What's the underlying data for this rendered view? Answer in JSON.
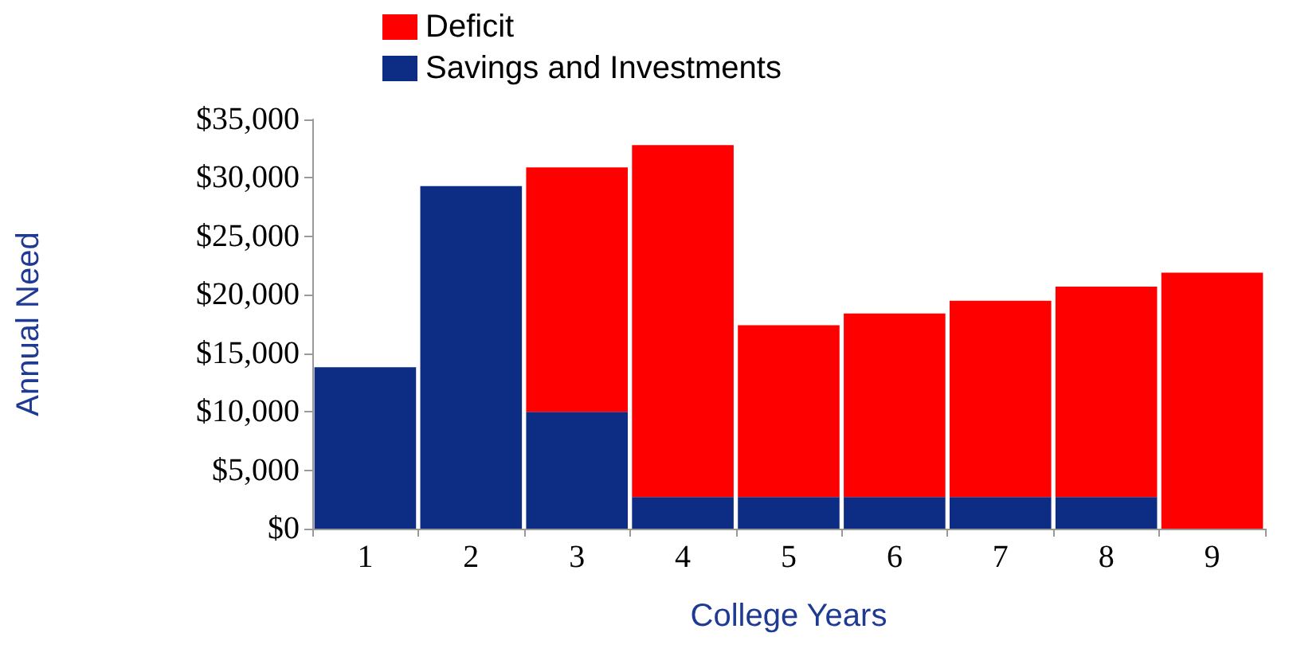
{
  "chart_data": {
    "type": "bar",
    "xlabel": "College Years",
    "ylabel": "Annual Need",
    "categories": [
      "1",
      "2",
      "3",
      "4",
      "5",
      "6",
      "7",
      "8",
      "9"
    ],
    "stacked": true,
    "legend": "top",
    "grid": false,
    "series": [
      {
        "name": "Savings and Investments",
        "color": "#0d2d85",
        "values": [
          13800,
          29300,
          10000,
          2700,
          2700,
          2700,
          2700,
          2700,
          0
        ]
      },
      {
        "name": "Deficit",
        "color": "#ff0000",
        "values": [
          0,
          0,
          20900,
          30100,
          14700,
          15700,
          16800,
          18000,
          21900
        ]
      }
    ],
    "ylim": [
      0,
      35000
    ],
    "yticks": [
      {
        "value": 0,
        "label": "$0"
      },
      {
        "value": 5000,
        "label": "$5,000"
      },
      {
        "value": 10000,
        "label": "$10,000"
      },
      {
        "value": 15000,
        "label": "$15,000"
      },
      {
        "value": 20000,
        "label": "$20,000"
      },
      {
        "value": 25000,
        "label": "$25,000"
      },
      {
        "value": 30000,
        "label": "$30,000"
      },
      {
        "value": 35000,
        "label": "$35,000"
      }
    ]
  }
}
